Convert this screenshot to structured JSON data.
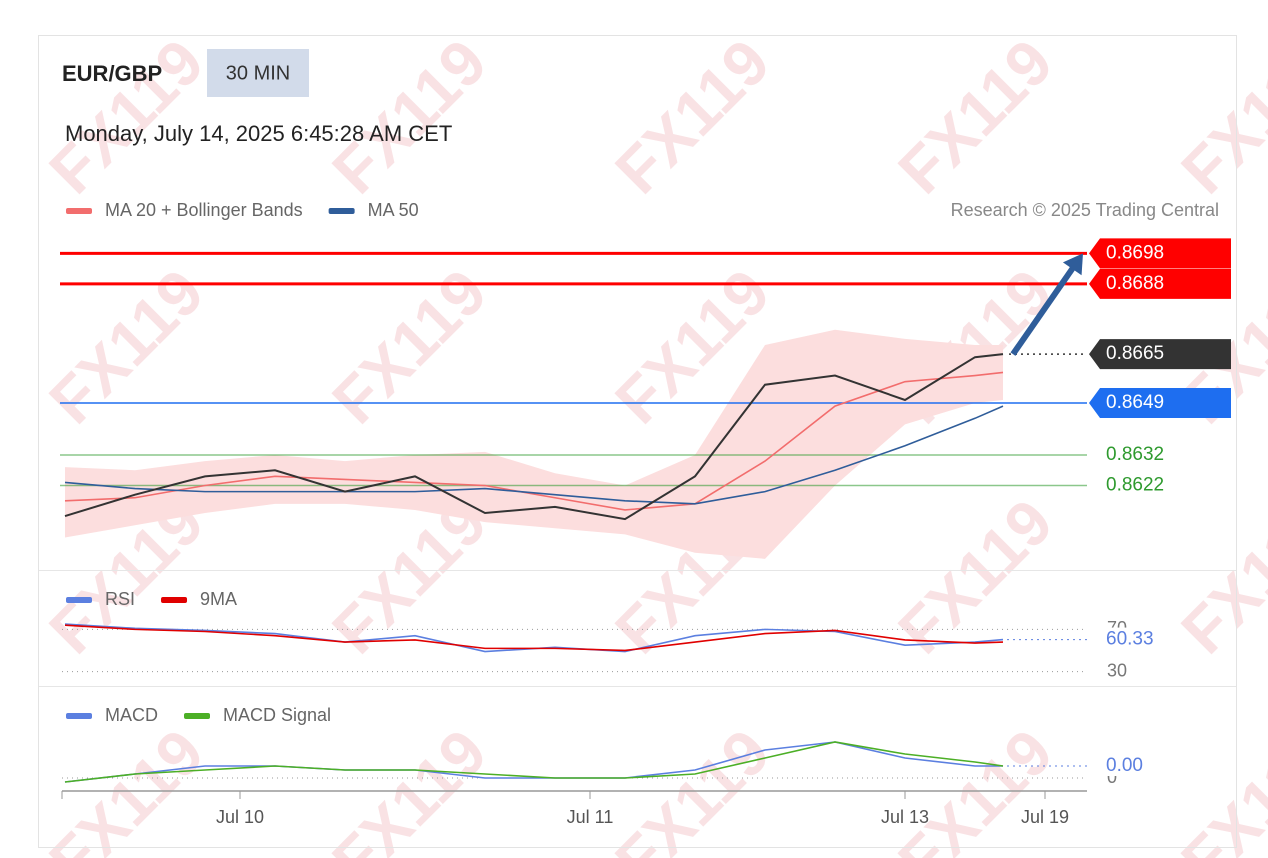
{
  "header": {
    "symbol": "EUR/GBP",
    "interval": "30 MIN",
    "datetime": "Monday, July 14, 2025 6:45:28 AM CET",
    "credit": "Research © 2025 Trading Central",
    "watermark": "FX119"
  },
  "chart_data": [
    {
      "type": "line",
      "xlim": [
        -1,
        146
      ],
      "ylim": [
        0.8595,
        0.8704
      ],
      "x": [
        0,
        10,
        20,
        30,
        40,
        50,
        60,
        70,
        80,
        90,
        100,
        110,
        120,
        130,
        134
      ],
      "values": [
        0.8612,
        0.8619,
        0.8625,
        0.8627,
        0.862,
        0.8625,
        0.8613,
        0.8615,
        0.8611,
        0.8625,
        0.8655,
        0.8658,
        0.865,
        0.8664,
        0.8665
      ],
      "color": "#333333",
      "series": [
        {
          "name": "MA 20 + Bollinger Bands",
          "color": "#f26d6d",
          "values": [
            0.8617,
            0.8618,
            0.8622,
            0.8625,
            0.8624,
            0.8623,
            0.8622,
            0.8618,
            0.8614,
            0.8616,
            0.863,
            0.8648,
            0.8656,
            0.8658,
            0.8659
          ],
          "band_upper": [
            0.8628,
            0.8627,
            0.863,
            0.8632,
            0.863,
            0.8632,
            0.8633,
            0.8626,
            0.8622,
            0.8632,
            0.8668,
            0.8673,
            0.867,
            0.8668,
            0.8668
          ],
          "band_lower": [
            0.8605,
            0.8609,
            0.8613,
            0.8616,
            0.8616,
            0.8614,
            0.861,
            0.8608,
            0.8606,
            0.86,
            0.8598,
            0.8622,
            0.8642,
            0.8649,
            0.865
          ],
          "band_color": "#fcdede"
        },
        {
          "name": "MA 50",
          "color": "#2f5d9a",
          "values": [
            0.8623,
            0.8621,
            0.862,
            0.862,
            0.862,
            0.862,
            0.8621,
            0.8619,
            0.8617,
            0.8616,
            0.862,
            0.8627,
            0.8635,
            0.8644,
            0.8648
          ]
        }
      ],
      "levels": [
        {
          "value": 0.8698,
          "color": "#ff0000",
          "box": true,
          "line": "solid"
        },
        {
          "value": 0.8688,
          "color": "#ff0000",
          "box": true,
          "line": "solid"
        },
        {
          "value": 0.8665,
          "color": "#333333",
          "box": true,
          "line": "dotted"
        },
        {
          "value": 0.8649,
          "color": "#1e6ef0",
          "box": true,
          "line": "solid"
        },
        {
          "value": 0.8632,
          "color": "#2e9a2e",
          "box": false,
          "line": "solid"
        },
        {
          "value": 0.8622,
          "color": "#2e9a2e",
          "box": false,
          "line": "solid"
        }
      ]
    },
    {
      "type": "line",
      "xlim": [
        -1,
        146
      ],
      "ylim": [
        22,
        77
      ],
      "yticks": [
        30,
        70
      ],
      "x": [
        0,
        10,
        20,
        30,
        40,
        50,
        60,
        70,
        80,
        90,
        100,
        110,
        120,
        130,
        134
      ],
      "series": [
        {
          "name": "RSI",
          "color": "#5b7fe0",
          "values": [
            75,
            71,
            69,
            66,
            58,
            64,
            49,
            53,
            49,
            64,
            70,
            68,
            55,
            58,
            60.33
          ]
        },
        {
          "name": "9MA",
          "color": "#e00000",
          "values": [
            74,
            70,
            68,
            64,
            58,
            60,
            52,
            52,
            50,
            58,
            66,
            69,
            60,
            57,
            58
          ]
        }
      ]
    },
    {
      "type": "line",
      "xlim": [
        -1,
        146
      ],
      "ylim": [
        -0.0003,
        0.0012
      ],
      "yticks": [
        0
      ],
      "x": [
        0,
        10,
        20,
        30,
        40,
        50,
        60,
        70,
        80,
        90,
        100,
        110,
        120,
        130,
        134
      ],
      "current": {
        "value": 0.0003,
        "label": "0.00"
      },
      "xticks": [
        {
          "value": 25,
          "label": "Jul 10"
        },
        {
          "value": 75,
          "label": "Jul 11"
        },
        {
          "value": 120,
          "label": "Jul 13"
        },
        {
          "value": 140,
          "label": "Jul 19"
        }
      ],
      "series": [
        {
          "name": "MACD",
          "color": "#5b7fe0",
          "values": [
            -0.0001,
            0.0001,
            0.0003,
            0.0003,
            0.0002,
            0.0002,
            0.0,
            0.0,
            0.0,
            0.0002,
            0.0007,
            0.0009,
            0.0005,
            0.0003,
            0.0003
          ]
        },
        {
          "name": "MACD Signal",
          "color": "#4caf26",
          "values": [
            -0.0001,
            0.0001,
            0.0002,
            0.0003,
            0.0002,
            0.0002,
            0.0001,
            0.0,
            0.0,
            0.0001,
            0.0005,
            0.0009,
            0.0006,
            0.0004,
            0.0003
          ]
        }
      ]
    }
  ]
}
